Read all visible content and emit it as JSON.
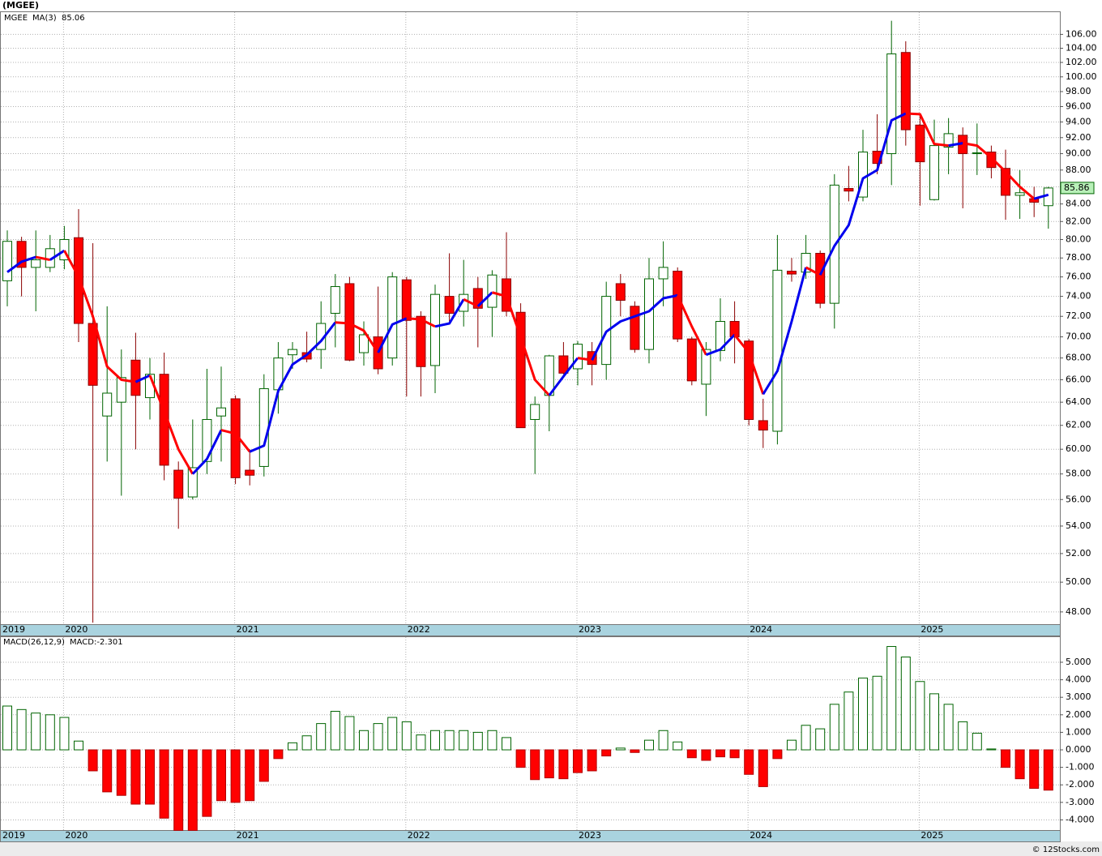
{
  "chart_data": [
    {
      "type": "candlestick",
      "title": "(MGEE)",
      "symbol": "MGEE",
      "ma_name": "MA(3)",
      "log_scale": true,
      "grid": true,
      "up_color": "#006400",
      "down_color": "#ff0000",
      "ma_up_color": "#0000ee",
      "ma_down_color": "#ff0000",
      "last_box_color": "#b8f0b8",
      "categories": [
        "2019",
        null,
        null,
        null,
        "2020",
        null,
        null,
        null,
        null,
        null,
        null,
        null,
        null,
        null,
        null,
        null,
        "2021",
        null,
        null,
        null,
        null,
        null,
        null,
        null,
        null,
        null,
        null,
        null,
        "2022",
        null,
        null,
        null,
        null,
        null,
        null,
        null,
        null,
        null,
        null,
        null,
        "2023",
        null,
        null,
        null,
        null,
        null,
        null,
        null,
        null,
        null,
        null,
        null,
        "2024",
        null,
        null,
        null,
        null,
        null,
        null,
        null,
        null,
        null,
        null,
        null,
        "2025",
        null,
        null,
        null,
        null,
        null,
        null,
        null,
        null,
        null
      ],
      "open": [
        75.6,
        79.8,
        77,
        77,
        77.8,
        80.2,
        71.3,
        62.8,
        64,
        67.8,
        64.4,
        66.5,
        58.3,
        56.2,
        59,
        62.8,
        64.3,
        58.3,
        58.6,
        65.1,
        68.3,
        68.5,
        68.8,
        72.3,
        75.3,
        68.5,
        70,
        68,
        75.7,
        72,
        67.3,
        74,
        72.5,
        74.8,
        72.9,
        75.8,
        72.4,
        62.5,
        64.6,
        68.2,
        67,
        68.6,
        67.4,
        75.3,
        73,
        68.8,
        75.8,
        76.6,
        69.8,
        65.6,
        68.7,
        71.5,
        69.6,
        62.4,
        61.5,
        76.6,
        76.5,
        78.5,
        73.3,
        85.8,
        84.8,
        90.3,
        90,
        103.4,
        93.6,
        84.5,
        90.8,
        92.3,
        90,
        90.2,
        88.2,
        85,
        84.6,
        83.8
      ],
      "high": [
        81,
        80.3,
        81,
        80.5,
        81.5,
        83.4,
        79.6,
        73,
        68.8,
        70.4,
        68,
        68.5,
        59,
        62.5,
        67,
        67.2,
        64.6,
        60,
        66.5,
        69.5,
        69.5,
        70.5,
        73.5,
        76.3,
        76,
        71.5,
        75,
        76.5,
        76,
        72.5,
        75.2,
        78.5,
        77.8,
        76,
        76.7,
        80.8,
        73.3,
        64.5,
        68.3,
        69.5,
        69.6,
        69.5,
        75.5,
        76.3,
        73.5,
        78,
        79.8,
        77,
        70,
        69.5,
        73.8,
        73.5,
        69.8,
        64.3,
        80.5,
        78,
        80.5,
        78.8,
        87.5,
        88.5,
        93,
        95,
        108,
        105,
        95,
        94.3,
        94.5,
        93.3,
        93.8,
        91,
        90.5,
        88,
        86,
        86
      ],
      "low": [
        73,
        74,
        72.5,
        76.5,
        76.8,
        69.5,
        47.3,
        59,
        56.3,
        60,
        62.5,
        57.5,
        53.8,
        56,
        58,
        59,
        57.2,
        57.1,
        57.8,
        63,
        67,
        67.6,
        67,
        69,
        67.7,
        67.3,
        66.5,
        67.3,
        64.5,
        64.5,
        64.8,
        71.5,
        71,
        69,
        70,
        72,
        61.8,
        58,
        61.5,
        66.5,
        65.5,
        65.5,
        66,
        72,
        68.5,
        67.5,
        73,
        69.5,
        65.5,
        62.8,
        67.7,
        67.5,
        62,
        60.1,
        60.4,
        75.5,
        75.8,
        72.8,
        70.8,
        84.3,
        84.3,
        87.5,
        86.2,
        91,
        83.8,
        84.4,
        87.5,
        83.5,
        87.4,
        87,
        82.2,
        82.3,
        82.5,
        81.2
      ],
      "close": [
        79.8,
        77,
        77.8,
        79,
        80,
        71.3,
        65.5,
        64.8,
        66.2,
        64.6,
        66.5,
        58.7,
        56.1,
        58.5,
        62.5,
        63.5,
        57.7,
        57.9,
        65.2,
        68,
        68.8,
        67.9,
        71.3,
        75,
        67.8,
        70.2,
        67,
        76,
        71.6,
        67.2,
        74.2,
        72.3,
        74.2,
        72.8,
        76.2,
        72.5,
        61.8,
        63.8,
        68.2,
        66.6,
        69.3,
        67.4,
        74,
        73.6,
        68.8,
        75.8,
        77,
        69.8,
        65.9,
        68.8,
        71.5,
        70,
        62.5,
        61.6,
        76.7,
        76.3,
        78.5,
        73.3,
        86.2,
        85.5,
        90.2,
        88.8,
        103.2,
        93,
        89,
        91,
        92.5,
        90,
        90.1,
        88.3,
        85,
        85.3,
        84.2,
        85.86
      ],
      "ma": [
        76.5,
        77.6,
        78.1,
        77.8,
        78.8,
        76,
        72,
        67.2,
        66,
        65.8,
        66.4,
        63.2,
        60,
        58,
        59.2,
        61.6,
        61.3,
        59.8,
        60.3,
        65,
        67.4,
        68.3,
        69.6,
        71.4,
        71.3,
        70.6,
        68.5,
        71.2,
        71.8,
        71.7,
        71,
        71.3,
        73.7,
        73,
        74.4,
        74,
        70,
        66,
        64.6,
        66.3,
        68,
        67.8,
        70.5,
        71.5,
        72,
        72.5,
        73.8,
        74.1,
        71,
        68.3,
        68.8,
        70.2,
        68.5,
        64.7,
        66.8,
        71.5,
        77,
        76.2,
        79.3,
        81.6,
        87,
        88,
        94.2,
        95.1,
        95,
        91.2,
        91,
        91.3,
        91,
        89.5,
        87.8,
        86,
        84.6,
        85.06
      ],
      "ylim": [
        47.2,
        109.4
      ],
      "yticks": [
        {
          "value": 48,
          "label": "48.00"
        },
        {
          "value": 50,
          "label": "50.00"
        },
        {
          "value": 52,
          "label": "52.00"
        },
        {
          "value": 54,
          "label": "54.00"
        },
        {
          "value": 56,
          "label": "56.00"
        },
        {
          "value": 58,
          "label": "58.00"
        },
        {
          "value": 60,
          "label": "60.00"
        },
        {
          "value": 62,
          "label": "62.00"
        },
        {
          "value": 64,
          "label": "64.00"
        },
        {
          "value": 66,
          "label": "66.00"
        },
        {
          "value": 68,
          "label": "68.00"
        },
        {
          "value": 70,
          "label": "70.00"
        },
        {
          "value": 72,
          "label": "72.00"
        },
        {
          "value": 74,
          "label": "74.00"
        },
        {
          "value": 76,
          "label": "76.00"
        },
        {
          "value": 78,
          "label": "78.00"
        },
        {
          "value": 80,
          "label": "80.00"
        },
        {
          "value": 82,
          "label": "82.00"
        },
        {
          "value": 84,
          "label": "84.00"
        },
        {
          "value": 86,
          "label": "86.00"
        },
        {
          "value": 88,
          "label": "88.00"
        },
        {
          "value": 90,
          "label": "90.00"
        },
        {
          "value": 92,
          "label": "92.00"
        },
        {
          "value": 94,
          "label": "94.00"
        },
        {
          "value": 96,
          "label": "96.00"
        },
        {
          "value": 98,
          "label": "98.00"
        },
        {
          "value": 100,
          "label": "100.00"
        },
        {
          "value": 102,
          "label": "102.00"
        },
        {
          "value": 104,
          "label": "104.00"
        },
        {
          "value": 106,
          "label": "106.00"
        }
      ]
    },
    {
      "type": "bar",
      "indicator": "MACD(26,12,9)",
      "last_label": "MACD:-2.301",
      "grid": true,
      "up_color": "#006400",
      "down_color": "#ff0000",
      "values": [
        2.5,
        2.3,
        2.1,
        2.0,
        1.85,
        0.5,
        -1.2,
        -2.4,
        -2.6,
        -3.1,
        -3.1,
        -3.9,
        -4.6,
        -4.6,
        -3.8,
        -2.9,
        -3.0,
        -2.9,
        -1.8,
        -0.5,
        0.4,
        0.8,
        1.5,
        2.2,
        1.9,
        1.1,
        1.5,
        1.85,
        1.6,
        0.85,
        1.1,
        1.1,
        1.1,
        1.0,
        1.1,
        0.7,
        -1.0,
        -1.7,
        -1.6,
        -1.65,
        -1.3,
        -1.2,
        -0.35,
        0.1,
        -0.15,
        0.55,
        1.1,
        0.45,
        -0.45,
        -0.6,
        -0.4,
        -0.45,
        -1.4,
        -2.1,
        -0.5,
        0.55,
        1.4,
        1.2,
        2.6,
        3.3,
        4.1,
        4.2,
        5.9,
        5.3,
        3.9,
        3.2,
        2.6,
        1.6,
        0.95,
        0.05,
        -1.0,
        -1.65,
        -2.2,
        -2.301
      ],
      "ylim": [
        -4.58,
        6.48
      ],
      "yticks": [
        {
          "value": -4,
          "label": "-4.000"
        },
        {
          "value": -3,
          "label": "-3.000"
        },
        {
          "value": -2,
          "label": "-2.000"
        },
        {
          "value": -1,
          "label": "-1.000"
        },
        {
          "value": 0,
          "label": "0.000"
        },
        {
          "value": 1,
          "label": "1.000"
        },
        {
          "value": 2,
          "label": "2.000"
        },
        {
          "value": 3,
          "label": "3.000"
        },
        {
          "value": 4,
          "label": "4.000"
        },
        {
          "value": 5,
          "label": "5.000"
        }
      ]
    }
  ],
  "watermark": "© 12Stocks.com"
}
